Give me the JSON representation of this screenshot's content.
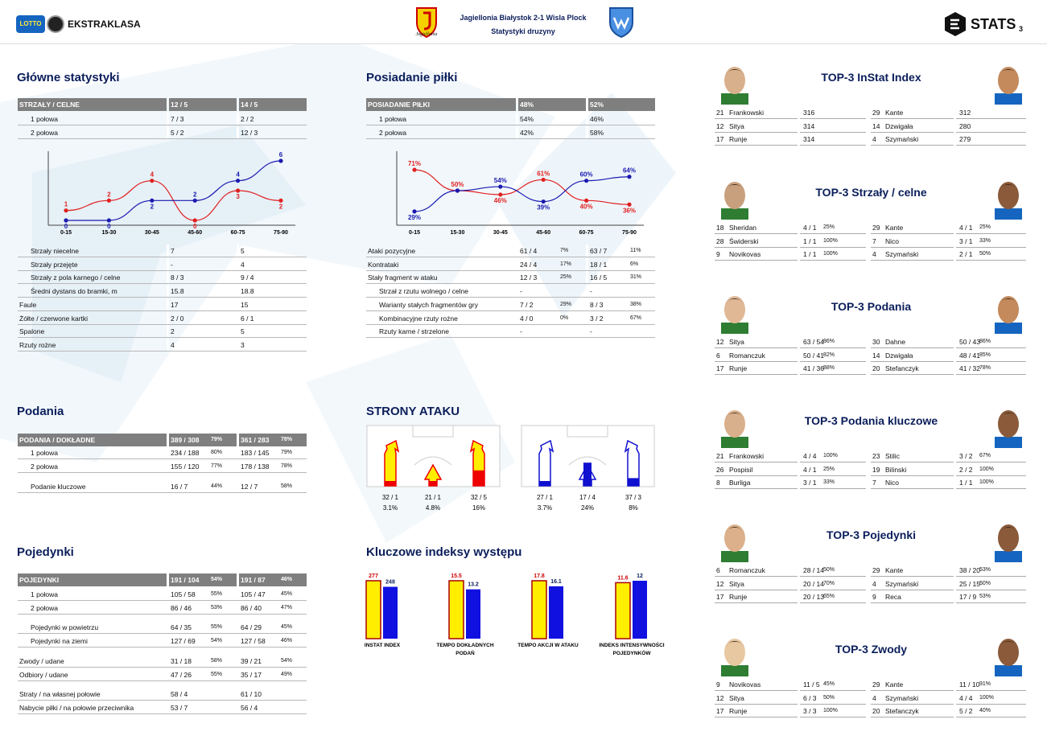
{
  "header": {
    "match": "Jagiellonia Białystok 2-1 Wisla Plock",
    "subtitle": "Statystyki druzyny",
    "league": "EKSTRAKLASA",
    "league_badge": "LOTTO",
    "home_logo_text": "Jagiellonia",
    "brand": "STATS",
    "page_number": "3"
  },
  "main": {
    "title": "Główne statystyki",
    "head": {
      "label": "STRZAŁY / CELNE",
      "home": "12 / 5",
      "away": "14 / 5"
    },
    "halves": [
      {
        "label": "1 połowa",
        "home": "7 / 3",
        "away": "2 / 2"
      },
      {
        "label": "2 połowa",
        "home": "5 / 2",
        "away": "12 / 3"
      }
    ],
    "rows": [
      {
        "label": "Strzały niecelne",
        "home": "7",
        "away": "5",
        "indent": true
      },
      {
        "label": "Strzały przejęte",
        "home": "-",
        "away": "4",
        "indent": true
      },
      {
        "label": "Strzały z pola karnego / celne",
        "home": "8 / 3",
        "away": "9 / 4",
        "indent": true
      },
      {
        "label": "Średni dystans do bramki, m",
        "home": "15.8",
        "away": "18.8",
        "indent": true
      },
      {
        "label": "Faule",
        "home": "17",
        "away": "15",
        "indent": false
      },
      {
        "label": "Żółte / czerwone kartki",
        "home": "2 / 0",
        "away": "6 / 1",
        "indent": false
      },
      {
        "label": "Spalone",
        "home": "2",
        "away": "5",
        "indent": false
      },
      {
        "label": "Rzuty rożne",
        "home": "4",
        "away": "3",
        "indent": false
      }
    ]
  },
  "possession": {
    "title": "Posiadanie piłki",
    "head": {
      "label": "POSIADANIE PIŁKI",
      "home": "48%",
      "away": "52%"
    },
    "halves": [
      {
        "label": "1 połowa",
        "home": "54%",
        "away": "46%"
      },
      {
        "label": "2 połowa",
        "home": "42%",
        "away": "58%"
      }
    ],
    "rows": [
      {
        "label": "Ataki pozycyjne",
        "home": "61 / 4",
        "hp": "7%",
        "away": "63 / 7",
        "ap": "11%",
        "indent": false
      },
      {
        "label": "Kontrataki",
        "home": "24 / 4",
        "hp": "17%",
        "away": "18 / 1",
        "ap": "6%",
        "indent": false
      },
      {
        "label": "Stały fragment w ataku",
        "home": "12 / 3",
        "hp": "25%",
        "away": "16 / 5",
        "ap": "31%",
        "indent": false
      },
      {
        "label": "Strzał z rzutu wolnego / celne",
        "home": "-",
        "hp": "",
        "away": "-",
        "ap": "",
        "indent": true
      },
      {
        "label": "Warianty stałych fragmentów gry",
        "home": "7 / 2",
        "hp": "29%",
        "away": "8 / 3",
        "ap": "38%",
        "indent": true
      },
      {
        "label": "Kombinacyjne rzuty rożne",
        "home": "4 / 0",
        "hp": "0%",
        "away": "3 / 2",
        "ap": "67%",
        "indent": true
      },
      {
        "label": "Rzuty karne / strzelone",
        "home": "-",
        "hp": "",
        "away": "-",
        "ap": "",
        "indent": true
      }
    ]
  },
  "passes": {
    "title": "Podania",
    "head": {
      "label": "PODANIA / DOKŁADNE",
      "home": "389 / 308",
      "hp": "79%",
      "away": "361 / 283",
      "ap": "78%"
    },
    "rows": [
      {
        "label": "1 połowa",
        "home": "234 / 188",
        "hp": "80%",
        "away": "183 / 145",
        "ap": "79%"
      },
      {
        "label": "2 połowa",
        "home": "155 / 120",
        "hp": "77%",
        "away": "178 / 138",
        "ap": "78%"
      },
      {
        "label": "Podanie kluczowe",
        "home": "16 / 7",
        "hp": "44%",
        "away": "12 / 7",
        "ap": "58%"
      }
    ]
  },
  "duels": {
    "title": "Pojedynki",
    "head": {
      "label": "POJEDYNKI",
      "home": "191 / 104",
      "hp": "54%",
      "away": "191 / 87",
      "ap": "46%"
    },
    "rows": [
      {
        "label": "1 połowa",
        "home": "105 / 58",
        "hp": "55%",
        "away": "105 / 47",
        "ap": "45%",
        "indent": true
      },
      {
        "label": "2 połowa",
        "home": "86 / 46",
        "hp": "53%",
        "away": "86 / 40",
        "ap": "47%",
        "indent": true
      },
      {
        "label": "Pojedynki w powietrzu",
        "home": "64 / 35",
        "hp": "55%",
        "away": "64 / 29",
        "ap": "45%",
        "indent": true
      },
      {
        "label": "Pojedynki na ziemi",
        "home": "127 / 69",
        "hp": "54%",
        "away": "127 / 58",
        "ap": "46%",
        "indent": true
      },
      {
        "label": "Zwody / udane",
        "home": "31 / 18",
        "hp": "58%",
        "away": "39 / 21",
        "ap": "54%",
        "indent": false
      },
      {
        "label": "Odbiory / udane",
        "home": "47 / 26",
        "hp": "55%",
        "away": "35 / 17",
        "ap": "49%",
        "indent": false
      },
      {
        "label": "Straty / na własnej połowie",
        "home": "58 / 4",
        "hp": "",
        "away": "61 / 10",
        "ap": "",
        "indent": false
      },
      {
        "label": "Nabycie piłki / na połowie przeciwnika",
        "home": "53 / 7",
        "hp": "",
        "away": "56 / 4",
        "ap": "",
        "indent": false
      }
    ]
  },
  "attack": {
    "title": "STRONY ATAKU",
    "home": [
      {
        "count": "32 / 1",
        "pct": "3.1%",
        "level": 0.031
      },
      {
        "count": "21 / 1",
        "pct": "4.8%",
        "level": 0.048
      },
      {
        "count": "32 / 5",
        "pct": "16%",
        "level": 0.16
      }
    ],
    "away": [
      {
        "count": "27 / 1",
        "pct": "3.7%",
        "level": 0.037
      },
      {
        "count": "17 / 4",
        "pct": "24%",
        "level": 0.24
      },
      {
        "count": "37 / 3",
        "pct": "8%",
        "level": 0.08
      }
    ]
  },
  "chart_data": [
    {
      "type": "line",
      "title": "",
      "categories": [
        "0-15",
        "15-30",
        "30-45",
        "45-60",
        "60-75",
        "75-90"
      ],
      "series": [
        {
          "color": "#e02020",
          "values": [
            1,
            2,
            4,
            0,
            3,
            2
          ]
        },
        {
          "color": "#1a1ab0",
          "values": [
            0,
            0,
            2,
            2,
            4,
            6
          ]
        }
      ],
      "ylim": [
        0,
        6
      ]
    },
    {
      "type": "line",
      "title": "",
      "categories": [
        "0-15",
        "15-30",
        "30-45",
        "45-60",
        "60-75",
        "75-90"
      ],
      "series": [
        {
          "color": "#e02020",
          "values": [
            71,
            50,
            46,
            61,
            40,
            36
          ],
          "labels": [
            "71%",
            "50%",
            "46%",
            "61%",
            "40%",
            "36%"
          ]
        },
        {
          "color": "#1a1ab0",
          "values": [
            29,
            50,
            54,
            39,
            60,
            64
          ],
          "labels": [
            "29%",
            "",
            "54%",
            "39%",
            "60%",
            "64%"
          ]
        }
      ],
      "ylim": [
        20,
        80
      ]
    },
    {
      "type": "bar",
      "title": "Kluczowe indeksy występu",
      "categories": [
        "INSTAT INDEX",
        "TEMPO DOKŁADNYCH PODAŃ",
        "TEMPO AKCJI W ATAKU",
        "INDEKS INTENSYWNOŚCI POJEDYNKÓW"
      ],
      "series": [
        {
          "color": "#ffee00",
          "values": [
            277,
            15.5,
            17.8,
            11.6
          ]
        },
        {
          "color": "#1010e0",
          "values": [
            248,
            13.2,
            16.1,
            12
          ]
        }
      ]
    }
  ],
  "tops": [
    {
      "title": "TOP-3 InStat Index",
      "home": [
        [
          "21",
          "Frankowski",
          "316",
          ""
        ],
        [
          "12",
          "Sitya",
          "314",
          ""
        ],
        [
          "17",
          "Runje",
          "314",
          ""
        ]
      ],
      "away": [
        [
          "29",
          "Kante",
          "312",
          ""
        ],
        [
          "14",
          "Dzwigała",
          "280",
          ""
        ],
        [
          "4",
          "Szymański",
          "279",
          ""
        ]
      ]
    },
    {
      "title": "TOP-3 Strzały / celne",
      "home": [
        [
          "18",
          "Sheridan",
          "4 / 1",
          "25%"
        ],
        [
          "28",
          "Świderski",
          "1 / 1",
          "100%"
        ],
        [
          "9",
          "Novikovas",
          "1 / 1",
          "100%"
        ]
      ],
      "away": [
        [
          "29",
          "Kante",
          "4 / 1",
          "25%"
        ],
        [
          "7",
          "Nico",
          "3 / 1",
          "33%"
        ],
        [
          "4",
          "Szymański",
          "2 / 1",
          "50%"
        ]
      ]
    },
    {
      "title": "TOP-3 Podania",
      "home": [
        [
          "12",
          "Sitya",
          "63 / 54",
          "86%"
        ],
        [
          "6",
          "Romanczuk",
          "50 / 41",
          "82%"
        ],
        [
          "17",
          "Runje",
          "41 / 36",
          "88%"
        ]
      ],
      "away": [
        [
          "30",
          "Dahne",
          "50 / 43",
          "86%"
        ],
        [
          "14",
          "Dzwigała",
          "48 / 41",
          "85%"
        ],
        [
          "20",
          "Stefanczyk",
          "41 / 32",
          "78%"
        ]
      ]
    },
    {
      "title": "TOP-3 Podania kluczowe",
      "home": [
        [
          "21",
          "Frankowski",
          "4 / 4",
          "100%"
        ],
        [
          "26",
          "Pospisil",
          "4 / 1",
          "25%"
        ],
        [
          "8",
          "Burliga",
          "3 / 1",
          "33%"
        ]
      ],
      "away": [
        [
          "23",
          "Stilic",
          "3 / 2",
          "67%"
        ],
        [
          "19",
          "Bilinski",
          "2 / 2",
          "100%"
        ],
        [
          "7",
          "Nico",
          "1 / 1",
          "100%"
        ]
      ]
    },
    {
      "title": "TOP-3 Pojedynki",
      "home": [
        [
          "6",
          "Romanczuk",
          "28 / 14",
          "50%"
        ],
        [
          "12",
          "Sitya",
          "20 / 14",
          "70%"
        ],
        [
          "17",
          "Runje",
          "20 / 13",
          "65%"
        ]
      ],
      "away": [
        [
          "29",
          "Kante",
          "38 / 20",
          "53%"
        ],
        [
          "4",
          "Szymański",
          "25 / 15",
          "60%"
        ],
        [
          "9",
          "Reca",
          "17 / 9",
          "53%"
        ]
      ]
    },
    {
      "title": "TOP-3 Zwody",
      "home": [
        [
          "9",
          "Novikovas",
          "11 / 5",
          "45%"
        ],
        [
          "12",
          "Sitya",
          "6 / 3",
          "50%"
        ],
        [
          "17",
          "Runje",
          "3 / 3",
          "100%"
        ]
      ],
      "away": [
        [
          "29",
          "Kante",
          "11 / 10",
          "91%"
        ],
        [
          "4",
          "Szymański",
          "4 / 4",
          "100%"
        ],
        [
          "20",
          "Stefanczyk",
          "5 / 2",
          "40%"
        ]
      ]
    }
  ]
}
